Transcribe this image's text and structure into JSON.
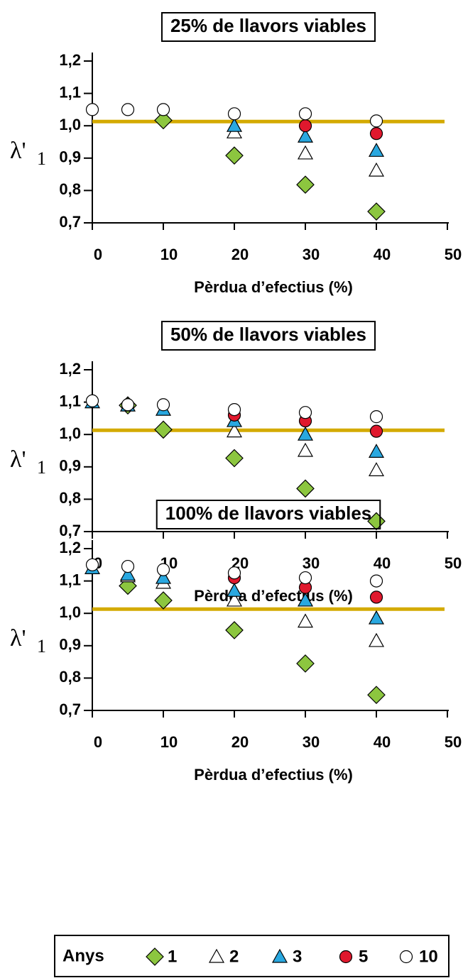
{
  "chart_data": [
    {
      "type": "scatter",
      "title": "25% de llavors viables",
      "xlabel": "Pèrdua d’efectius (%)",
      "ylabel": "λ'",
      "ylabel_sub": "1",
      "xlim": [
        0,
        50
      ],
      "xticks": [
        0,
        10,
        20,
        30,
        40,
        50
      ],
      "ylim": [
        0.7,
        1.2
      ],
      "yticks": [
        {
          "value": 0.7,
          "label": "0,7"
        },
        {
          "value": 0.8,
          "label": "0,8"
        },
        {
          "value": 0.9,
          "label": "0,9"
        },
        {
          "value": 1.0,
          "label": "1,0"
        },
        {
          "value": 1.1,
          "label": "1,1"
        },
        {
          "value": 1.2,
          "label": "1,2"
        }
      ],
      "reference_line": 1.013,
      "reference_color": "#d4aa00",
      "series": [
        {
          "name": "1",
          "marker": "diamond",
          "color": "#8cc63f",
          "x": [
            10,
            20,
            30,
            40
          ],
          "values": [
            1.017,
            0.908,
            0.818,
            0.735
          ]
        },
        {
          "name": "2",
          "marker": "triangle",
          "color": "#ffffff",
          "x": [
            20,
            30,
            40
          ],
          "values": [
            0.98,
            0.915,
            0.862
          ]
        },
        {
          "name": "3",
          "marker": "triangle",
          "color": "#29a8e0",
          "x": [
            20,
            30,
            40
          ],
          "values": [
            1.0,
            0.967,
            0.923
          ]
        },
        {
          "name": "5",
          "marker": "circle",
          "color": "#e0182d",
          "x": [
            30,
            40
          ],
          "values": [
            1.0,
            0.976
          ]
        },
        {
          "name": "10",
          "marker": "circle",
          "color": "#ffffff",
          "x": [
            0,
            5,
            10,
            20,
            30,
            40
          ],
          "values": [
            1.05,
            1.05,
            1.05,
            1.037,
            1.037,
            1.015
          ]
        }
      ]
    },
    {
      "type": "scatter",
      "title": "50% de llavors viables",
      "xlabel": "Pèrdua d’efectius (%)",
      "ylabel": "λ'",
      "ylabel_sub": "1",
      "xlim": [
        0,
        50
      ],
      "xticks": [
        0,
        10,
        20,
        30,
        40,
        50
      ],
      "ylim": [
        0.7,
        1.2
      ],
      "yticks": [
        {
          "value": 0.7,
          "label": "0,7"
        },
        {
          "value": 0.8,
          "label": "0,8"
        },
        {
          "value": 0.9,
          "label": "0,9"
        },
        {
          "value": 1.0,
          "label": "1,0"
        },
        {
          "value": 1.1,
          "label": "1,1"
        },
        {
          "value": 1.2,
          "label": "1,2"
        }
      ],
      "reference_line": 1.013,
      "reference_color": "#d4aa00",
      "series": [
        {
          "name": "1",
          "marker": "diamond",
          "color": "#8cc63f",
          "x": [
            5,
            10,
            20,
            30,
            40
          ],
          "values": [
            1.09,
            1.015,
            0.927,
            0.833,
            0.732
          ]
        },
        {
          "name": "2",
          "marker": "triangle",
          "color": "#ffffff",
          "x": [
            20,
            30,
            40
          ],
          "values": [
            1.01,
            0.95,
            0.89
          ]
        },
        {
          "name": "3",
          "marker": "triangle",
          "color": "#29a8e0",
          "x": [
            0,
            5,
            10,
            20,
            30,
            40
          ],
          "values": [
            1.1,
            1.09,
            1.077,
            1.042,
            1.0,
            0.947
          ]
        },
        {
          "name": "5",
          "marker": "circle",
          "color": "#e0182d",
          "x": [
            20,
            30,
            40
          ],
          "values": [
            1.06,
            1.042,
            1.01
          ]
        },
        {
          "name": "10",
          "marker": "circle",
          "color": "#ffffff",
          "x": [
            0,
            5,
            10,
            20,
            30,
            40
          ],
          "values": [
            1.104,
            1.092,
            1.092,
            1.077,
            1.068,
            1.055
          ]
        }
      ]
    },
    {
      "type": "scatter",
      "title": "100% de llavors viables",
      "xlabel": "Pèrdua d’efectius (%)",
      "ylabel": "λ'",
      "ylabel_sub": "1",
      "xlim": [
        0,
        50
      ],
      "xticks": [
        0,
        10,
        20,
        30,
        40,
        50
      ],
      "ylim": [
        0.7,
        1.2
      ],
      "yticks": [
        {
          "value": 0.7,
          "label": "0,7"
        },
        {
          "value": 0.8,
          "label": "0,8"
        },
        {
          "value": 0.9,
          "label": "0,9"
        },
        {
          "value": 1.0,
          "label": "1,0"
        },
        {
          "value": 1.1,
          "label": "1,1"
        },
        {
          "value": 1.2,
          "label": "1,2"
        }
      ],
      "reference_line": 1.013,
      "reference_color": "#d4aa00",
      "series": [
        {
          "name": "1",
          "marker": "diamond",
          "color": "#8cc63f",
          "x": [
            5,
            10,
            20,
            30,
            40
          ],
          "values": [
            1.085,
            1.04,
            0.948,
            0.845,
            0.748
          ]
        },
        {
          "name": "2",
          "marker": "triangle",
          "color": "#ffffff",
          "x": [
            5,
            10,
            20,
            30,
            40
          ],
          "values": [
            1.115,
            1.095,
            1.04,
            0.975,
            0.915
          ]
        },
        {
          "name": "3",
          "marker": "triangle",
          "color": "#29a8e0",
          "x": [
            0,
            5,
            10,
            20,
            30,
            40
          ],
          "values": [
            1.14,
            1.12,
            1.11,
            1.07,
            1.04,
            0.985
          ]
        },
        {
          "name": "5",
          "marker": "circle",
          "color": "#e0182d",
          "x": [
            20,
            30,
            40
          ],
          "values": [
            1.11,
            1.08,
            1.05
          ]
        },
        {
          "name": "10",
          "marker": "circle",
          "color": "#ffffff",
          "x": [
            0,
            5,
            10,
            20,
            30,
            40
          ],
          "values": [
            1.15,
            1.145,
            1.135,
            1.125,
            1.11,
            1.1
          ]
        }
      ]
    }
  ],
  "legend": {
    "title": "Anys"
  }
}
